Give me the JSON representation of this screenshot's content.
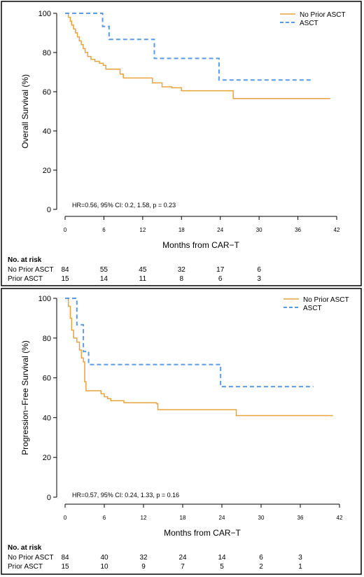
{
  "chart_data": [
    {
      "type": "line",
      "ylabel": "Overall Survival (%)",
      "xlabel": "Months from CAR−T",
      "xlim": [
        0,
        42
      ],
      "ylim": [
        0,
        100
      ],
      "xticks": [
        "0",
        "6",
        "12",
        "18",
        "24",
        "30",
        "36",
        "42"
      ],
      "yticks": [
        "0",
        "20",
        "40",
        "60",
        "80",
        "100"
      ],
      "legend_position": "top-right",
      "annotation": "HR=0.56, 95% CI: 0.2, 1.58, p = 0.23",
      "series": [
        {
          "name": "No Prior ASCT",
          "style": "solid",
          "color": "#E8A33D",
          "points": [
            [
              0,
              100
            ],
            [
              0.5,
              98
            ],
            [
              0.8,
              96
            ],
            [
              1,
              94
            ],
            [
              1.3,
              92
            ],
            [
              1.6,
              90
            ],
            [
              1.9,
              88
            ],
            [
              2.2,
              86
            ],
            [
              2.5,
              84
            ],
            [
              2.8,
              82
            ],
            [
              3.1,
              80
            ],
            [
              3.5,
              78
            ],
            [
              4,
              76.5
            ],
            [
              4.6,
              75.5
            ],
            [
              5.3,
              74.5
            ],
            [
              5.9,
              73.5
            ],
            [
              6.3,
              71.5
            ],
            [
              8.5,
              69
            ],
            [
              9,
              67
            ],
            [
              13.5,
              64.5
            ],
            [
              15,
              62.5
            ],
            [
              16.5,
              62
            ],
            [
              18,
              60.5
            ],
            [
              25.5,
              60.5
            ],
            [
              26,
              56.5
            ],
            [
              41,
              56.5
            ]
          ]
        },
        {
          "name": "ASCT",
          "style": "dashed",
          "color": "#5B9BE6",
          "points": [
            [
              0,
              100
            ],
            [
              5.8,
              100
            ],
            [
              5.8,
              93.3
            ],
            [
              6.8,
              93.3
            ],
            [
              6.8,
              86.7
            ],
            [
              13.8,
              86.7
            ],
            [
              13.8,
              77
            ],
            [
              23.8,
              77
            ],
            [
              23.8,
              66
            ],
            [
              38,
              66
            ]
          ]
        }
      ],
      "risk_table": {
        "header": "No. at risk",
        "rows": [
          {
            "label": "No Prior ASCT",
            "values": [
              "84",
              "55",
              "45",
              "32",
              "17",
              "6"
            ]
          },
          {
            "label": "Prior ASCT",
            "values": [
              "15",
              "14",
              "11",
              "8",
              "6",
              "3"
            ]
          }
        ]
      }
    },
    {
      "type": "line",
      "ylabel": "Progression−Free Survival (%)",
      "xlabel": "Months from CAR−T",
      "xlim": [
        0,
        42
      ],
      "ylim": [
        0,
        100
      ],
      "xticks": [
        "0",
        "6",
        "12",
        "18",
        "24",
        "30",
        "36",
        "42"
      ],
      "yticks": [
        "0",
        "20",
        "40",
        "60",
        "80",
        "100"
      ],
      "legend_position": "top-right",
      "annotation": "HR=0.57, 95% CI: 0.24, 1.33, p = 0.16",
      "series": [
        {
          "name": "No Prior ASCT",
          "style": "solid",
          "color": "#E8A33D",
          "points": [
            [
              0,
              100
            ],
            [
              0.5,
              96
            ],
            [
              0.8,
              90
            ],
            [
              1,
              84
            ],
            [
              1.3,
              80
            ],
            [
              1.8,
              78
            ],
            [
              2.2,
              74
            ],
            [
              2.5,
              70
            ],
            [
              2.8,
              68
            ],
            [
              3,
              58
            ],
            [
              3.2,
              53.5
            ],
            [
              5,
              53.5
            ],
            [
              5.5,
              52
            ],
            [
              6,
              50.5
            ],
            [
              6.5,
              49.5
            ],
            [
              7,
              48.5
            ],
            [
              9,
              47.5
            ],
            [
              11,
              47.5
            ],
            [
              14,
              47
            ],
            [
              14.2,
              44
            ],
            [
              26,
              44
            ],
            [
              26.2,
              41
            ],
            [
              41,
              41
            ]
          ]
        },
        {
          "name": "ASCT",
          "style": "dashed",
          "color": "#5B9BE6",
          "points": [
            [
              0,
              100
            ],
            [
              1.8,
              100
            ],
            [
              1.8,
              86.7
            ],
            [
              2.8,
              86.7
            ],
            [
              2.8,
              73.3
            ],
            [
              3.6,
              73.3
            ],
            [
              3.6,
              66.7
            ],
            [
              23.8,
              66.7
            ],
            [
              23.8,
              55.6
            ],
            [
              38,
              55.6
            ]
          ]
        }
      ],
      "risk_table": {
        "header": "No. at risk",
        "rows": [
          {
            "label": "No Prior ASCT",
            "values": [
              "84",
              "40",
              "32",
              "24",
              "14",
              "6",
              "3"
            ]
          },
          {
            "label": "Prior ASCT",
            "values": [
              "15",
              "10",
              "9",
              "7",
              "5",
              "2",
              "1"
            ]
          }
        ]
      }
    }
  ]
}
